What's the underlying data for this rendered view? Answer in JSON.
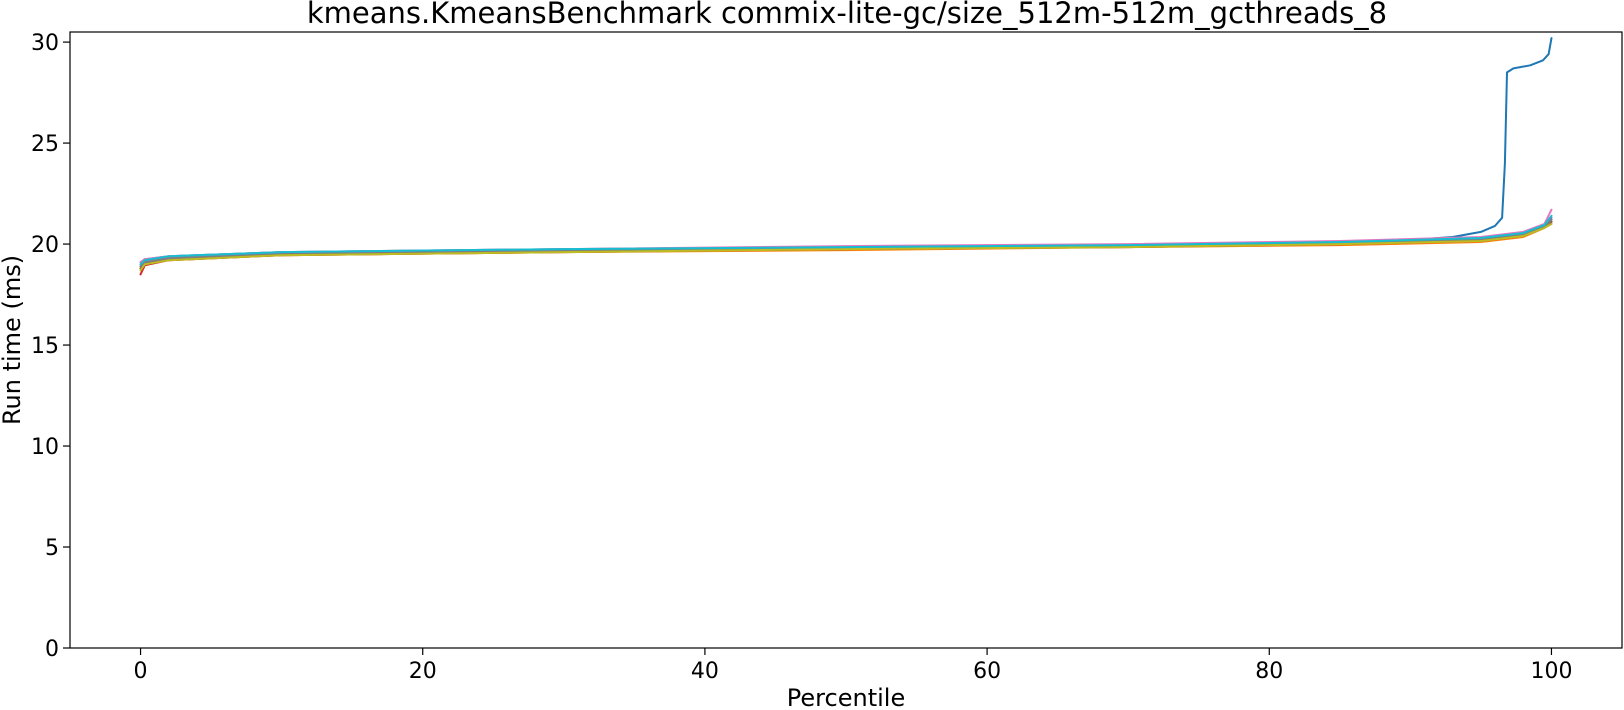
{
  "chart_data": {
    "type": "line",
    "title": "kmeans.KmeansBenchmark commix-lite-gc/size_512m-512m_gcthreads_8",
    "xlabel": "Percentile",
    "ylabel": "Run time (ms)",
    "xlim": [
      -5,
      105
    ],
    "ylim": [
      0,
      30.5
    ],
    "xticks": [
      0,
      20,
      40,
      60,
      80,
      100
    ],
    "yticks": [
      0,
      5,
      10,
      15,
      20,
      25,
      30
    ],
    "grid": false,
    "legend": "none",
    "series": [
      {
        "color": "#1f77b4",
        "points": [
          [
            0,
            19.1
          ],
          [
            0.3,
            19.25
          ],
          [
            2,
            19.4
          ],
          [
            10,
            19.6
          ],
          [
            30,
            19.75
          ],
          [
            50,
            19.85
          ],
          [
            70,
            19.95
          ],
          [
            85,
            20.1
          ],
          [
            90,
            20.2
          ],
          [
            93,
            20.35
          ],
          [
            95,
            20.6
          ],
          [
            96,
            20.9
          ],
          [
            96.5,
            21.3
          ],
          [
            96.7,
            24
          ],
          [
            96.85,
            28.5
          ],
          [
            97.3,
            28.7
          ],
          [
            98.5,
            28.85
          ],
          [
            99.4,
            29.1
          ],
          [
            99.8,
            29.4
          ],
          [
            100,
            30.2
          ]
        ]
      },
      {
        "color": "#ff7f0e",
        "points": [
          [
            0,
            18.7
          ],
          [
            0.3,
            19.0
          ],
          [
            2,
            19.2
          ],
          [
            10,
            19.45
          ],
          [
            30,
            19.6
          ],
          [
            50,
            19.7
          ],
          [
            70,
            19.85
          ],
          [
            85,
            19.95
          ],
          [
            95,
            20.1
          ],
          [
            98,
            20.35
          ],
          [
            99.5,
            20.8
          ],
          [
            100,
            21.0
          ]
        ]
      },
      {
        "color": "#2ca02c",
        "points": [
          [
            0,
            18.9
          ],
          [
            0.3,
            19.1
          ],
          [
            2,
            19.3
          ],
          [
            10,
            19.5
          ],
          [
            30,
            19.65
          ],
          [
            50,
            19.8
          ],
          [
            70,
            19.9
          ],
          [
            85,
            20.05
          ],
          [
            95,
            20.25
          ],
          [
            98,
            20.5
          ],
          [
            99.5,
            20.85
          ],
          [
            100,
            21.2
          ]
        ]
      },
      {
        "color": "#d62728",
        "points": [
          [
            0,
            18.5
          ],
          [
            0.3,
            18.95
          ],
          [
            2,
            19.2
          ],
          [
            10,
            19.45
          ],
          [
            30,
            19.6
          ],
          [
            50,
            19.75
          ],
          [
            70,
            19.85
          ],
          [
            85,
            20.0
          ],
          [
            95,
            20.15
          ],
          [
            98,
            20.4
          ],
          [
            99.5,
            20.8
          ],
          [
            100,
            21.1
          ]
        ]
      },
      {
        "color": "#9467bd",
        "points": [
          [
            0,
            19.0
          ],
          [
            0.3,
            19.2
          ],
          [
            2,
            19.35
          ],
          [
            10,
            19.55
          ],
          [
            30,
            19.7
          ],
          [
            50,
            19.85
          ],
          [
            70,
            19.95
          ],
          [
            85,
            20.1
          ],
          [
            95,
            20.3
          ],
          [
            98,
            20.55
          ],
          [
            99.5,
            20.9
          ],
          [
            100,
            21.3
          ]
        ]
      },
      {
        "color": "#8c564b",
        "points": [
          [
            0,
            18.8
          ],
          [
            0.3,
            19.05
          ],
          [
            2,
            19.25
          ],
          [
            10,
            19.5
          ],
          [
            30,
            19.65
          ],
          [
            50,
            19.75
          ],
          [
            70,
            19.9
          ],
          [
            85,
            20.0
          ],
          [
            95,
            20.2
          ],
          [
            98,
            20.45
          ],
          [
            99.5,
            20.85
          ],
          [
            100,
            21.1
          ]
        ]
      },
      {
        "color": "#e377c2",
        "points": [
          [
            0,
            19.1
          ],
          [
            0.3,
            19.25
          ],
          [
            2,
            19.4
          ],
          [
            10,
            19.6
          ],
          [
            30,
            19.75
          ],
          [
            50,
            19.9
          ],
          [
            70,
            20.0
          ],
          [
            85,
            20.15
          ],
          [
            95,
            20.35
          ],
          [
            98,
            20.6
          ],
          [
            99.5,
            21.0
          ],
          [
            100,
            21.7
          ]
        ]
      },
      {
        "color": "#7f7f7f",
        "points": [
          [
            0,
            18.9
          ],
          [
            0.3,
            19.1
          ],
          [
            2,
            19.3
          ],
          [
            10,
            19.5
          ],
          [
            30,
            19.65
          ],
          [
            50,
            19.8
          ],
          [
            70,
            19.9
          ],
          [
            85,
            20.05
          ],
          [
            95,
            20.25
          ],
          [
            98,
            20.5
          ],
          [
            99.5,
            20.85
          ],
          [
            100,
            21.2
          ]
        ]
      },
      {
        "color": "#bcbd22",
        "points": [
          [
            0,
            18.7
          ],
          [
            0.3,
            19.0
          ],
          [
            2,
            19.2
          ],
          [
            10,
            19.45
          ],
          [
            30,
            19.6
          ],
          [
            50,
            19.75
          ],
          [
            70,
            19.85
          ],
          [
            85,
            20.0
          ],
          [
            95,
            20.15
          ],
          [
            98,
            20.4
          ],
          [
            99.5,
            20.8
          ],
          [
            100,
            21.0
          ]
        ]
      },
      {
        "color": "#17becf",
        "points": [
          [
            0,
            19.0
          ],
          [
            0.3,
            19.2
          ],
          [
            2,
            19.4
          ],
          [
            10,
            19.6
          ],
          [
            30,
            19.75
          ],
          [
            50,
            19.85
          ],
          [
            70,
            19.95
          ],
          [
            85,
            20.1
          ],
          [
            95,
            20.3
          ],
          [
            98,
            20.55
          ],
          [
            99.5,
            20.95
          ],
          [
            100,
            21.4
          ]
        ]
      }
    ]
  }
}
